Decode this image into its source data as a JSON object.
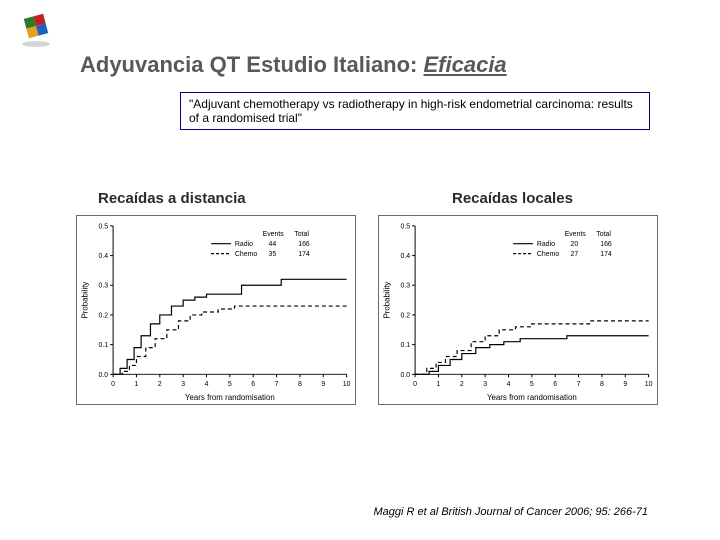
{
  "logo_colors": [
    "#2a7a2a",
    "#c02020",
    "#e0a020",
    "#2060c0"
  ],
  "title": {
    "prefix": "Adyuvancia QT Estudio Italiano: ",
    "emph": "Eficacia"
  },
  "quote": "\"Adjuvant chemotherapy vs radiotherapy in high-risk endometrial carcinoma: results of a randomised trial\"",
  "citation": "Maggi R et al British Journal of Cancer 2006; 95: 266-71",
  "chart_left": {
    "label": "Recaídas a distancia",
    "ylabel": "Probability",
    "xlabel": "Years from randomisation",
    "ylim": [
      0.0,
      0.5
    ],
    "ytick_step": 0.1,
    "xlim": [
      0,
      10
    ],
    "xtick_step": 1,
    "axis_color": "#000000",
    "grid_color": "#d8d8d8",
    "line_width": 1.2,
    "series": [
      {
        "name": "Radio",
        "dash": "solid",
        "color": "#000000",
        "events": 44,
        "total": 166,
        "points": [
          [
            0,
            0.0
          ],
          [
            0.3,
            0.02
          ],
          [
            0.6,
            0.05
          ],
          [
            0.9,
            0.09
          ],
          [
            1.2,
            0.13
          ],
          [
            1.6,
            0.17
          ],
          [
            2.0,
            0.2
          ],
          [
            2.5,
            0.23
          ],
          [
            3.0,
            0.25
          ],
          [
            3.5,
            0.26
          ],
          [
            4.0,
            0.27
          ],
          [
            5.0,
            0.27
          ],
          [
            5.5,
            0.3
          ],
          [
            7.0,
            0.3
          ],
          [
            7.2,
            0.32
          ],
          [
            10,
            0.32
          ]
        ]
      },
      {
        "name": "Chemo",
        "dash": "dashed",
        "color": "#000000",
        "events": 35,
        "total": 174,
        "points": [
          [
            0,
            0.0
          ],
          [
            0.4,
            0.01
          ],
          [
            0.7,
            0.03
          ],
          [
            1.0,
            0.06
          ],
          [
            1.4,
            0.09
          ],
          [
            1.8,
            0.12
          ],
          [
            2.3,
            0.15
          ],
          [
            2.8,
            0.18
          ],
          [
            3.3,
            0.2
          ],
          [
            3.8,
            0.21
          ],
          [
            4.5,
            0.22
          ],
          [
            5.2,
            0.23
          ],
          [
            6.0,
            0.23
          ],
          [
            7.0,
            0.23
          ],
          [
            10,
            0.23
          ]
        ]
      }
    ],
    "legend_header": {
      "col1": "Events",
      "col2": "Total"
    }
  },
  "chart_right": {
    "label": "Recaídas locales",
    "ylabel": "Probability",
    "xlabel": "Years from randomisation",
    "ylim": [
      0.0,
      0.5
    ],
    "ytick_step": 0.1,
    "xlim": [
      0,
      10
    ],
    "xtick_step": 1,
    "axis_color": "#000000",
    "grid_color": "#d8d8d8",
    "line_width": 1.2,
    "series": [
      {
        "name": "Radio",
        "dash": "solid",
        "color": "#000000",
        "events": 20,
        "total": 166,
        "points": [
          [
            0,
            0.0
          ],
          [
            0.6,
            0.01
          ],
          [
            1.0,
            0.03
          ],
          [
            1.5,
            0.05
          ],
          [
            2.0,
            0.07
          ],
          [
            2.6,
            0.09
          ],
          [
            3.2,
            0.1
          ],
          [
            3.8,
            0.11
          ],
          [
            4.5,
            0.12
          ],
          [
            5.5,
            0.12
          ],
          [
            6.5,
            0.13
          ],
          [
            8.0,
            0.13
          ],
          [
            10,
            0.13
          ]
        ]
      },
      {
        "name": "Chemo",
        "dash": "dashed",
        "color": "#000000",
        "events": 27,
        "total": 174,
        "points": [
          [
            0,
            0.0
          ],
          [
            0.5,
            0.02
          ],
          [
            0.9,
            0.04
          ],
          [
            1.3,
            0.06
          ],
          [
            1.8,
            0.08
          ],
          [
            2.4,
            0.11
          ],
          [
            3.0,
            0.13
          ],
          [
            3.6,
            0.15
          ],
          [
            4.3,
            0.16
          ],
          [
            5.0,
            0.17
          ],
          [
            6.0,
            0.17
          ],
          [
            7.5,
            0.18
          ],
          [
            10,
            0.18
          ]
        ]
      }
    ],
    "legend_header": {
      "col1": "Events",
      "col2": "Total"
    }
  }
}
